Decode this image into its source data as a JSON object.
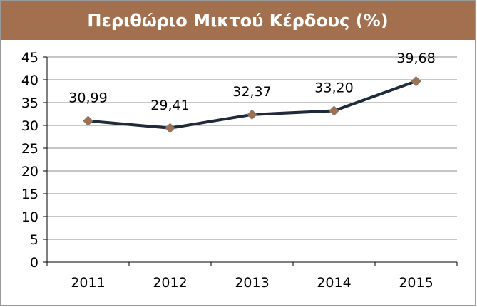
{
  "chart_data": {
    "type": "line",
    "title": "Περιθώριο Μικτού Κέρδους (%)",
    "categories": [
      "2011",
      "2012",
      "2013",
      "2014",
      "2015"
    ],
    "series": [
      {
        "values": [
          30.99,
          29.41,
          32.37,
          33.2,
          39.68
        ]
      }
    ],
    "data_labels": [
      "30,99",
      "29,41",
      "32,37",
      "33,20",
      "39,68"
    ],
    "y_ticks": [
      "0",
      "5",
      "10",
      "15",
      "20",
      "25",
      "30",
      "35",
      "40",
      "45"
    ],
    "ylim": [
      0,
      45
    ],
    "grid": true,
    "legend": "none",
    "colors": {
      "line": "#1f2a3a",
      "marker": "#a3704f",
      "title_bar": "#a3704f",
      "grid": "#8c8c8c"
    }
  }
}
